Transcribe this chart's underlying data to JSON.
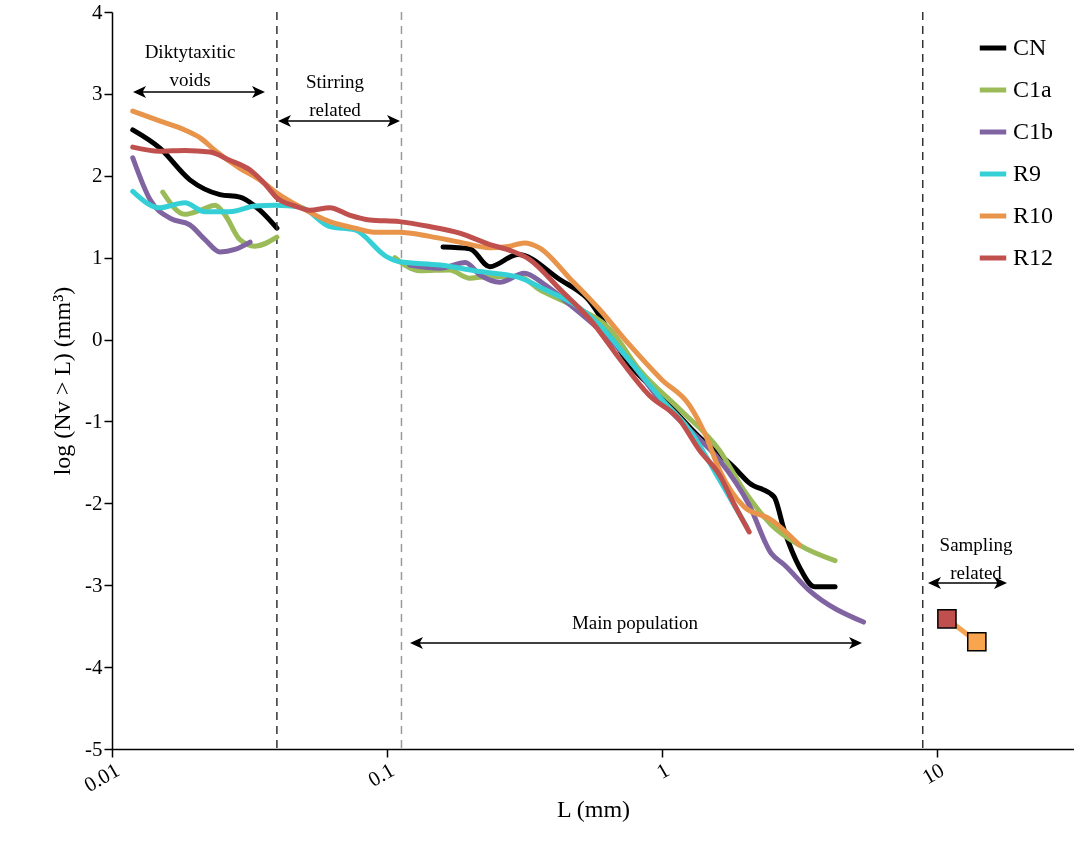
{
  "chart_data": {
    "type": "line",
    "xlabel": "L (mm)",
    "ylabel": "log (Nv > L) (mm³)",
    "log": "x",
    "xlim": [
      0.01,
      31.6
    ],
    "xticks": [
      0.01,
      0.1,
      1,
      10
    ],
    "ylim": [
      -5,
      4
    ],
    "yticks": [
      -5,
      -4,
      -3,
      -2,
      -1,
      0,
      1,
      2,
      3,
      4
    ],
    "grid": false,
    "legend": "top right",
    "series": [
      {
        "name": "CN",
        "color": "#000000",
        "x": [
          0.0119,
          0.0149,
          0.0192,
          0.0247,
          0.0292,
          0.0345,
          0.0398,
          null,
          0.16,
          0.2,
          0.237,
          0.3,
          0.427,
          0.533,
          0.761,
          1.0,
          1.37,
          1.83,
          2.08,
          2.56,
          2.79,
          3.17,
          3.6,
          4.27
        ],
        "values": [
          2.56,
          2.34,
          1.95,
          1.77,
          1.74,
          1.58,
          1.36,
          null,
          1.13,
          1.11,
          0.89,
          1.04,
          0.73,
          0.51,
          -0.3,
          -0.7,
          -1.19,
          -1.56,
          -1.75,
          -1.92,
          -2.33,
          -2.78,
          -3.02,
          -3.02
        ]
      },
      {
        "name": "C1a",
        "color": "#9bbb59",
        "x": [
          0.0153,
          0.0184,
          0.021,
          0.0237,
          0.0258,
          0.0292,
          0.0331,
          0.0398,
          null,
          0.107,
          0.132,
          0.169,
          0.2,
          0.237,
          0.302,
          0.359,
          0.462,
          0.65,
          0.83,
          1.17,
          1.62,
          1.99,
          2.5,
          3.17,
          4.27
        ],
        "values": [
          1.8,
          1.53,
          1.58,
          1.64,
          1.52,
          1.22,
          1.14,
          1.25,
          null,
          1.0,
          0.84,
          0.85,
          0.75,
          0.77,
          0.77,
          0.61,
          0.43,
          0.12,
          -0.37,
          -0.86,
          -1.35,
          -1.84,
          -2.26,
          -2.51,
          -2.7
        ]
      },
      {
        "name": "C1b",
        "color": "#8064a2",
        "x": [
          0.0119,
          0.0138,
          0.0163,
          0.0192,
          0.0218,
          0.0247,
          0.028,
          0.0318,
          null,
          0.121,
          0.156,
          0.193,
          0.218,
          0.258,
          0.316,
          0.375,
          0.462,
          0.593,
          0.761,
          0.98,
          1.26,
          1.62,
          2.08,
          2.5,
          2.79,
          3.43,
          5.42
        ],
        "values": [
          2.22,
          1.7,
          1.48,
          1.4,
          1.22,
          1.07,
          1.1,
          1.19,
          null,
          0.91,
          0.87,
          0.94,
          0.79,
          0.7,
          0.81,
          0.67,
          0.43,
          0.12,
          -0.25,
          -0.73,
          -1.1,
          -1.47,
          -2.02,
          -2.61,
          -2.75,
          -3.06,
          -3.45
        ]
      },
      {
        "name": "R9",
        "color": "#35d0d6",
        "x": [
          0.0119,
          0.0149,
          0.0184,
          0.0218,
          0.0268,
          0.0331,
          0.0392,
          0.0483,
          0.062,
          0.0765,
          0.1,
          0.111,
          0.156,
          0.218,
          0.302,
          0.375,
          0.486,
          0.593,
          0.761,
          1.0,
          1.26,
          1.62,
          2.04
        ],
        "values": [
          1.81,
          1.61,
          1.67,
          1.56,
          1.56,
          1.63,
          1.64,
          1.62,
          1.38,
          1.34,
          1.01,
          0.95,
          0.91,
          0.83,
          0.76,
          0.61,
          0.42,
          0.18,
          -0.25,
          -0.73,
          -1.1,
          -1.71,
          -2.29
        ]
      },
      {
        "name": "R10",
        "color": "#e8944a",
        "x": [
          0.0119,
          0.0149,
          0.0184,
          0.021,
          0.0237,
          0.0292,
          0.0345,
          0.0398,
          0.0483,
          0.062,
          0.0765,
          0.09,
          0.111,
          0.143,
          0.184,
          0.237,
          0.28,
          0.316,
          0.359,
          0.462,
          0.593,
          0.761,
          1.0,
          1.26,
          1.44,
          1.62,
          1.99,
          2.5,
          3.17
        ],
        "values": [
          2.79,
          2.67,
          2.56,
          2.46,
          2.31,
          2.09,
          1.95,
          1.79,
          1.62,
          1.44,
          1.36,
          1.31,
          1.31,
          1.26,
          1.19,
          1.12,
          1.14,
          1.18,
          1.12,
          0.75,
          0.37,
          -0.06,
          -0.49,
          -0.8,
          -1.16,
          -1.59,
          -2.04,
          -2.2,
          -2.51
        ]
      },
      {
        "name": "R12",
        "color": "#c0504d",
        "x": [
          0.0119,
          0.0149,
          0.0184,
          0.0227,
          0.0268,
          0.0318,
          0.036,
          0.0398,
          0.0464,
          0.0524,
          0.062,
          0.0731,
          0.0867,
          0.111,
          0.143,
          0.184,
          0.237,
          0.28,
          0.33,
          0.427,
          0.55,
          0.708,
          0.9,
          1.16,
          1.37,
          1.62,
          1.84,
          2.08
        ],
        "values": [
          2.35,
          2.3,
          2.31,
          2.29,
          2.19,
          2.07,
          1.9,
          1.73,
          1.63,
          1.58,
          1.61,
          1.52,
          1.46,
          1.44,
          1.38,
          1.3,
          1.16,
          1.09,
          0.98,
          0.61,
          0.24,
          -0.25,
          -0.68,
          -0.98,
          -1.35,
          -1.65,
          -2.02,
          -2.35
        ]
      },
      {
        "type": "line",
        "marker": "square",
        "color": "#f4a450",
        "colors": [
          "#c0504d",
          "#f9a54f"
        ],
        "x": [
          10.9,
          14.0
        ],
        "values": [
          -3.41,
          -3.69
        ]
      }
    ],
    "ref_lines": [
      {
        "axis": "x",
        "value": 0.0398,
        "color": "#333333",
        "line_style": "dashed"
      },
      {
        "axis": "x",
        "value": 0.113,
        "color": "#999999",
        "line_style": "dashed"
      },
      {
        "axis": "x",
        "value": 8.9,
        "color": "#333333",
        "line_style": "dashed"
      }
    ],
    "annotations": [
      "Diktytaxitic\nvoids",
      "Stirring\nrelated",
      "Main population",
      "Sampling\nrelated"
    ]
  }
}
